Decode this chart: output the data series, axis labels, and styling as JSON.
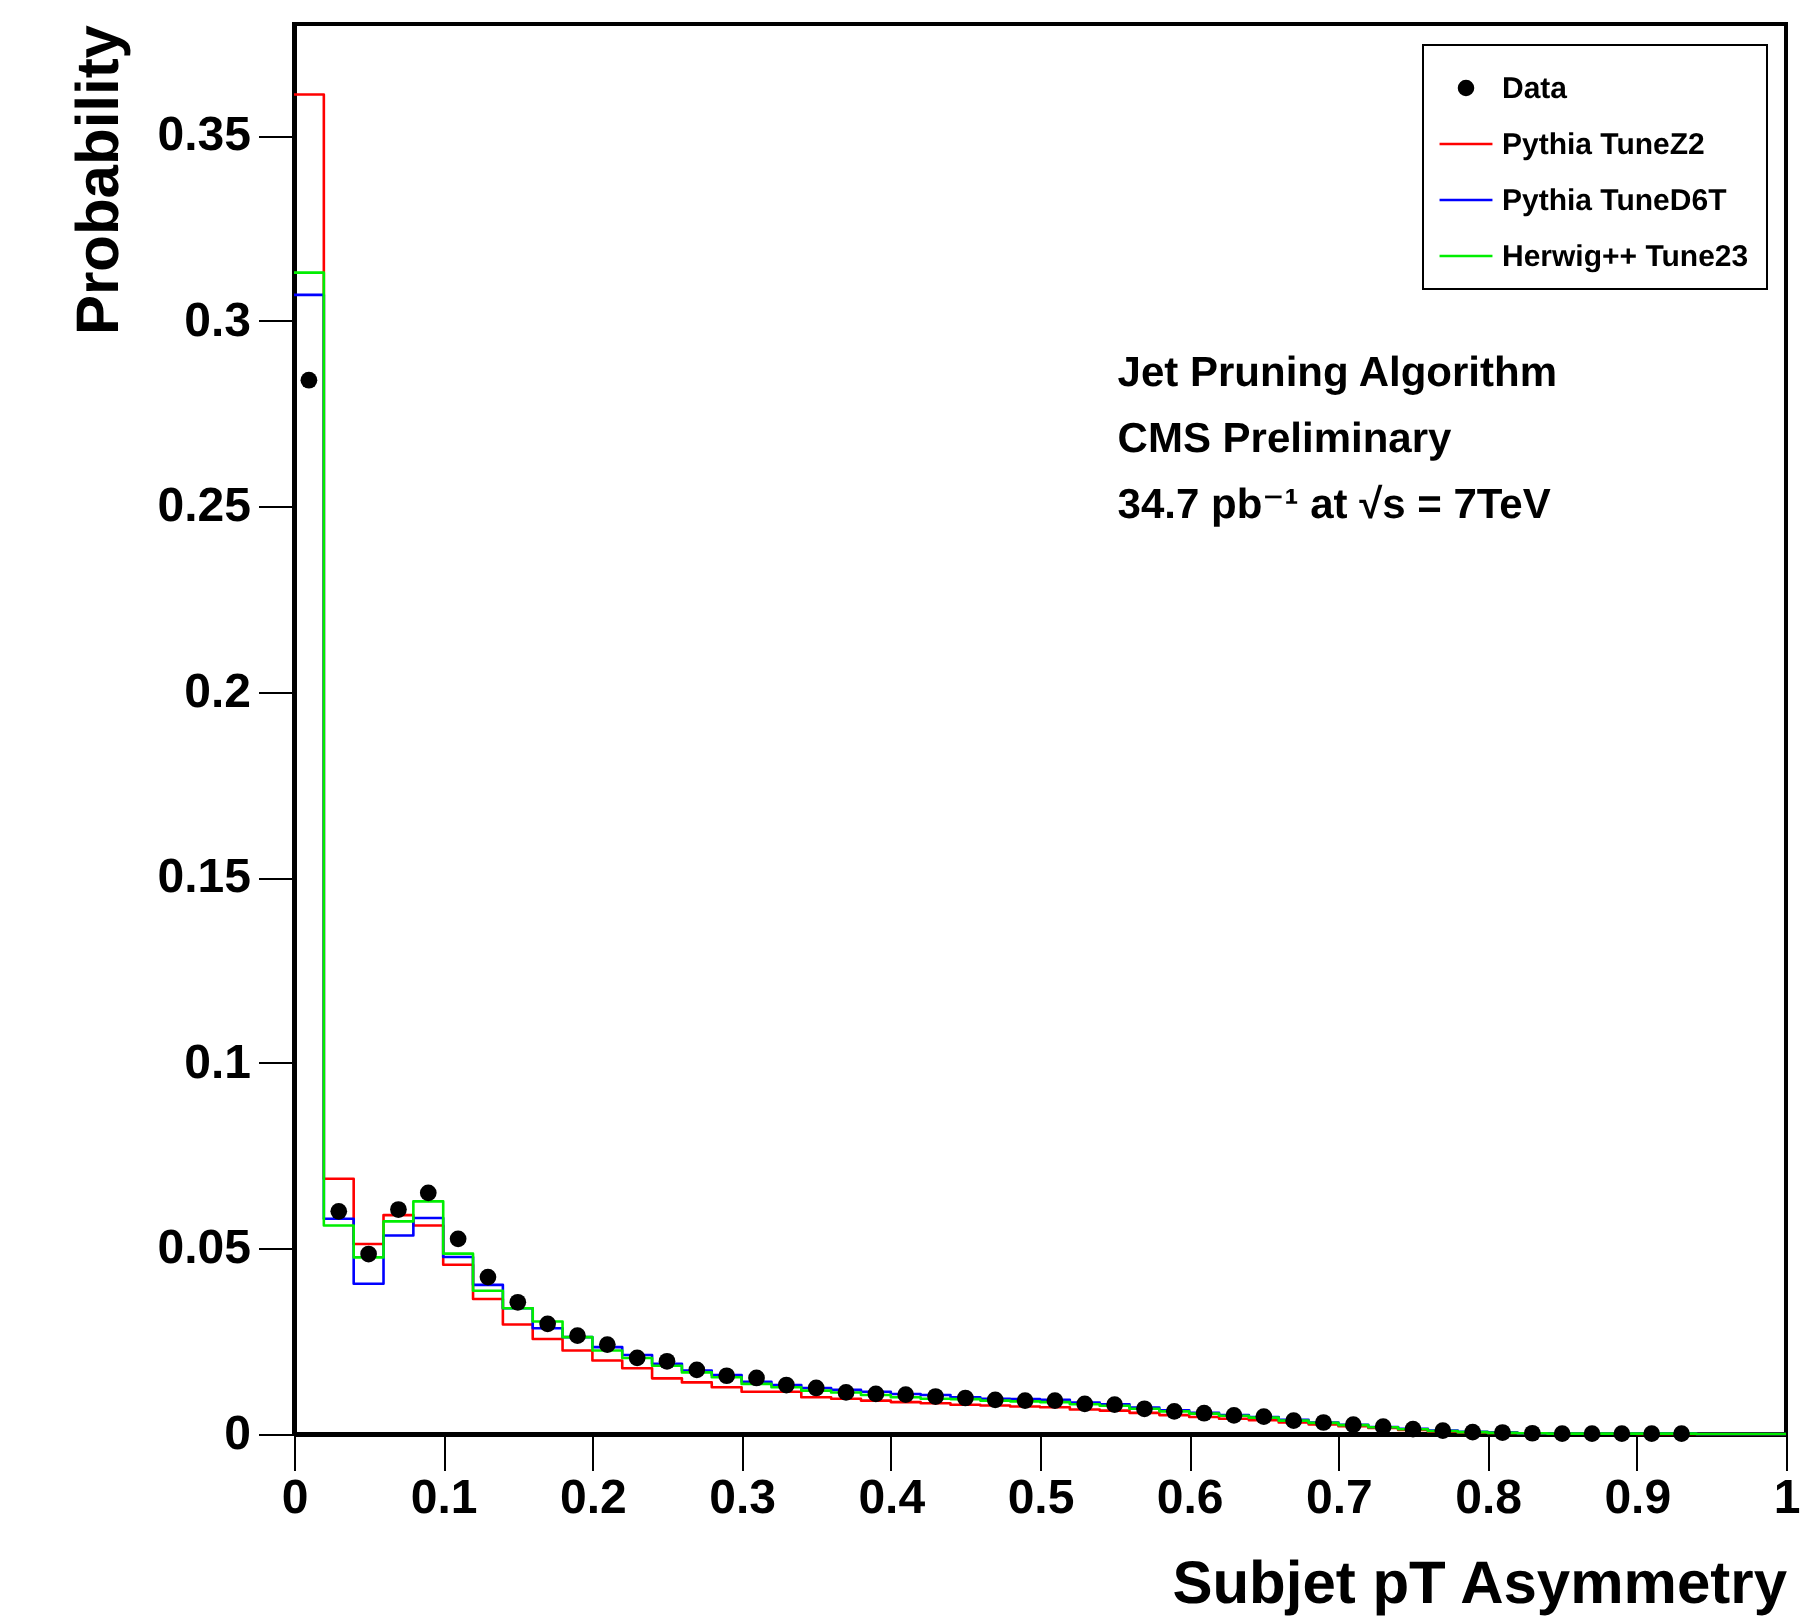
{
  "chart_data": {
    "type": "histogram",
    "xlabel": "Subjet pT Asymmetry",
    "ylabel": "Probability",
    "bins": [
      0,
      0.02,
      0.04,
      0.06,
      0.08,
      0.1,
      0.12,
      0.14,
      0.16,
      0.18,
      0.2,
      0.22,
      0.24,
      0.26,
      0.28,
      0.3,
      0.32,
      0.34,
      0.36,
      0.38,
      0.4,
      0.42,
      0.44,
      0.46,
      0.48,
      0.5,
      0.52,
      0.54,
      0.56,
      0.58,
      0.6,
      0.62,
      0.64,
      0.66,
      0.68,
      0.7,
      0.72,
      0.74,
      0.76,
      0.78,
      0.8,
      0.82,
      0.84,
      0.86,
      0.88,
      0.9,
      0.92,
      0.94,
      0.96,
      0.98,
      1
    ],
    "series": [
      {
        "name": "Data",
        "type": "scatter",
        "color": "#000000",
        "x": [
          0.01,
          0.03,
          0.05,
          0.07,
          0.09,
          0.11,
          0.13,
          0.15,
          0.17,
          0.19,
          0.21,
          0.23,
          0.25,
          0.27,
          0.29,
          0.31,
          0.33,
          0.35,
          0.37,
          0.39,
          0.41,
          0.43,
          0.45,
          0.47,
          0.49,
          0.51,
          0.53,
          0.55,
          0.57,
          0.59,
          0.61,
          0.63,
          0.65,
          0.67,
          0.69,
          0.71,
          0.73,
          0.75,
          0.77,
          0.79,
          0.81,
          0.83,
          0.85,
          0.87,
          0.89,
          0.91,
          0.93
        ],
        "values": [
          0.284,
          0.06,
          0.0485,
          0.0605,
          0.065,
          0.0526,
          0.0423,
          0.0355,
          0.0297,
          0.0265,
          0.0241,
          0.0205,
          0.0196,
          0.0173,
          0.0157,
          0.0151,
          0.0132,
          0.0124,
          0.0112,
          0.0108,
          0.0106,
          0.0101,
          0.0097,
          0.0092,
          0.009,
          0.009,
          0.0081,
          0.0079,
          0.0068,
          0.0061,
          0.0056,
          0.005,
          0.0047,
          0.0036,
          0.0031,
          0.0025,
          0.002,
          0.0013,
          0.0009,
          0.0005,
          0.0004,
          0.0002,
          0.0001,
          0.0001,
          0.0001,
          0.0001,
          0.0001
        ]
      },
      {
        "name": "Pythia TuneZ2",
        "color": "#ff0000",
        "values": [
          0.361,
          0.0688,
          0.0512,
          0.059,
          0.0562,
          0.0456,
          0.0364,
          0.0295,
          0.0256,
          0.0225,
          0.0198,
          0.0177,
          0.015,
          0.0139,
          0.0126,
          0.0114,
          0.0114,
          0.0099,
          0.0095,
          0.009,
          0.0086,
          0.0083,
          0.0079,
          0.0077,
          0.0074,
          0.0072,
          0.0066,
          0.0063,
          0.0057,
          0.0051,
          0.0046,
          0.0041,
          0.0037,
          0.0031,
          0.0026,
          0.0021,
          0.0016,
          0.0011,
          0.0007,
          0.0004,
          0.0003,
          0.0002,
          0.0001,
          0.0001,
          0.0001,
          0,
          0,
          0,
          0,
          0
        ]
      },
      {
        "name": "Pythia TuneD6T",
        "color": "#0000ff",
        "values": [
          0.307,
          0.058,
          0.0405,
          0.0535,
          0.0582,
          0.0477,
          0.0402,
          0.0339,
          0.0285,
          0.0261,
          0.0234,
          0.0213,
          0.0189,
          0.0171,
          0.0159,
          0.0141,
          0.0132,
          0.0124,
          0.0119,
          0.0114,
          0.0108,
          0.0105,
          0.0099,
          0.0095,
          0.0094,
          0.0092,
          0.0085,
          0.008,
          0.0071,
          0.0064,
          0.0057,
          0.0051,
          0.0046,
          0.0038,
          0.0031,
          0.0025,
          0.0019,
          0.0014,
          0.0009,
          0.0006,
          0.0004,
          0.0002,
          0.0001,
          0.0001,
          0.0001,
          0.0001,
          0.0001,
          0,
          0,
          0
        ]
      },
      {
        "name": "Herwig++ Tune23",
        "color": "#00ee00",
        "values": [
          0.313,
          0.0562,
          0.0476,
          0.0573,
          0.0627,
          0.0486,
          0.0386,
          0.0339,
          0.0303,
          0.0261,
          0.0225,
          0.0205,
          0.0184,
          0.0166,
          0.0153,
          0.0135,
          0.0126,
          0.0117,
          0.0112,
          0.0105,
          0.0099,
          0.0095,
          0.0094,
          0.009,
          0.0088,
          0.0086,
          0.008,
          0.0076,
          0.0068,
          0.0061,
          0.0055,
          0.0049,
          0.0044,
          0.0036,
          0.003,
          0.0024,
          0.0018,
          0.0013,
          0.0008,
          0.0005,
          0.0003,
          0.0002,
          0.0001,
          0.0001,
          0.0001,
          0.0001,
          0.0001,
          0,
          0,
          0
        ]
      }
    ],
    "xlim": [
      0,
      1
    ],
    "xticks": [
      0,
      0.1,
      0.2,
      0.3,
      0.4,
      0.5,
      0.6,
      0.7,
      0.8,
      0.9,
      1
    ],
    "ylim": [
      0,
      0.38
    ],
    "yticks": [
      0,
      0.05,
      0.1,
      0.15,
      0.2,
      0.25,
      0.3,
      0.35
    ],
    "annotations": [
      "Jet Pruning Algorithm",
      "CMS Preliminary",
      "34.7 pb⁻¹ at √s = 7TeV"
    ],
    "legend": "top right",
    "marker": "circle",
    "grid": false
  }
}
